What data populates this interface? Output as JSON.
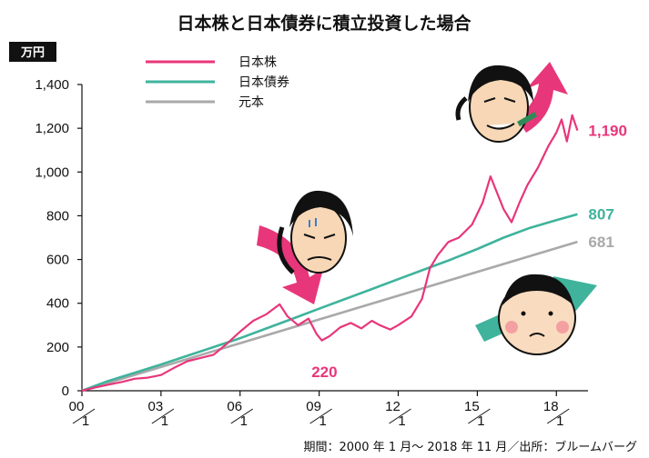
{
  "chart_data": {
    "type": "line",
    "title": "日本株と日本債券に積立投資した場合",
    "unit": "万円",
    "ylim": [
      0,
      1400
    ],
    "yticks": [
      "0",
      "200",
      "400",
      "600",
      "800",
      "1,000",
      "1,200",
      "1,400"
    ],
    "xticks": [
      {
        "year": "00",
        "month": "1",
        "x": 2000.0
      },
      {
        "year": "03",
        "month": "1",
        "x": 2003.0
      },
      {
        "year": "06",
        "month": "1",
        "x": 2006.0
      },
      {
        "year": "09",
        "month": "1",
        "x": 2009.0
      },
      {
        "year": "12",
        "month": "1",
        "x": 2012.0
      },
      {
        "year": "15",
        "month": "1",
        "x": 2015.0
      },
      {
        "year": "18",
        "month": "1",
        "x": 2018.0
      }
    ],
    "xlim": [
      2000.0,
      2019.2
    ],
    "grid": false,
    "legend_position": "top",
    "series": [
      {
        "name": "日本株",
        "color": "#e8367a",
        "end_label": "1,190",
        "points": [
          [
            2000.0,
            0
          ],
          [
            2000.5,
            15
          ],
          [
            2001.0,
            28
          ],
          [
            2001.5,
            40
          ],
          [
            2002.0,
            55
          ],
          [
            2002.5,
            60
          ],
          [
            2003.0,
            72
          ],
          [
            2003.5,
            105
          ],
          [
            2004.0,
            135
          ],
          [
            2004.5,
            150
          ],
          [
            2005.0,
            165
          ],
          [
            2005.5,
            215
          ],
          [
            2006.0,
            270
          ],
          [
            2006.5,
            320
          ],
          [
            2007.0,
            350
          ],
          [
            2007.5,
            395
          ],
          [
            2007.8,
            340
          ],
          [
            2008.2,
            300
          ],
          [
            2008.6,
            330
          ],
          [
            2008.9,
            260
          ],
          [
            2009.1,
            230
          ],
          [
            2009.4,
            250
          ],
          [
            2009.8,
            290
          ],
          [
            2010.2,
            310
          ],
          [
            2010.6,
            285
          ],
          [
            2011.0,
            320
          ],
          [
            2011.3,
            300
          ],
          [
            2011.7,
            280
          ],
          [
            2012.0,
            300
          ],
          [
            2012.5,
            340
          ],
          [
            2012.9,
            420
          ],
          [
            2013.2,
            560
          ],
          [
            2013.5,
            620
          ],
          [
            2013.9,
            680
          ],
          [
            2014.3,
            700
          ],
          [
            2014.8,
            760
          ],
          [
            2015.2,
            860
          ],
          [
            2015.5,
            980
          ],
          [
            2015.7,
            920
          ],
          [
            2016.0,
            830
          ],
          [
            2016.3,
            770
          ],
          [
            2016.6,
            860
          ],
          [
            2016.9,
            940
          ],
          [
            2017.3,
            1020
          ],
          [
            2017.7,
            1120
          ],
          [
            2018.0,
            1180
          ],
          [
            2018.2,
            1240
          ],
          [
            2018.4,
            1140
          ],
          [
            2018.6,
            1260
          ],
          [
            2018.8,
            1190
          ]
        ]
      },
      {
        "name": "日本債券",
        "color": "#3fb39c",
        "end_label": "807",
        "points": [
          [
            2000.0,
            0
          ],
          [
            2001.0,
            45
          ],
          [
            2002.0,
            82
          ],
          [
            2003.0,
            120
          ],
          [
            2004.0,
            160
          ],
          [
            2005.0,
            200
          ],
          [
            2006.0,
            240
          ],
          [
            2007.0,
            285
          ],
          [
            2008.0,
            330
          ],
          [
            2009.0,
            375
          ],
          [
            2010.0,
            420
          ],
          [
            2011.0,
            465
          ],
          [
            2012.0,
            510
          ],
          [
            2013.0,
            555
          ],
          [
            2014.0,
            600
          ],
          [
            2015.0,
            648
          ],
          [
            2016.0,
            700
          ],
          [
            2017.0,
            745
          ],
          [
            2018.0,
            780
          ],
          [
            2018.8,
            807
          ]
        ]
      },
      {
        "name": "元本",
        "color": "#a9a9a9",
        "end_label": "681",
        "points": [
          [
            2000.0,
            0
          ],
          [
            2018.8,
            681
          ]
        ]
      }
    ],
    "annotations": [
      {
        "text": "220",
        "x": 2009.2,
        "y": 220,
        "color": "#e8367a"
      }
    ],
    "source": "期間：2000 年 1 月〜 2018 年 11 月／出所：ブルームバーグ"
  }
}
